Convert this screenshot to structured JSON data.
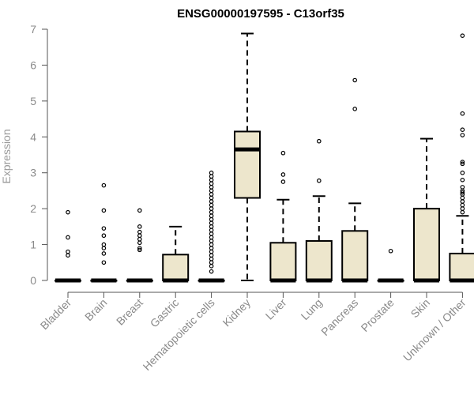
{
  "chart_data": {
    "type": "box",
    "title": "ENSG00000197595 - C13orf35",
    "xlabel": "",
    "ylabel": "Expression",
    "ylim": [
      0,
      7
    ],
    "yticks": [
      0,
      1,
      2,
      3,
      4,
      5,
      6,
      7
    ],
    "box_fill": "#ede6cc",
    "box_stroke": "#000000",
    "categories": [
      "Bladder",
      "Brain",
      "Breast",
      "Gastric",
      "Hematopoietic cells",
      "Kidney",
      "Liver",
      "Lung",
      "Pancreas",
      "Prostate",
      "Skin",
      "Unknown / Other"
    ],
    "boxes": [
      {
        "min": 0,
        "q1": 0,
        "median": 0,
        "q3": 0,
        "max": 0,
        "outliers": [
          1.9,
          1.2,
          0.8,
          0.7
        ]
      },
      {
        "min": 0,
        "q1": 0,
        "median": 0,
        "q3": 0,
        "max": 0,
        "outliers": [
          2.65,
          1.95,
          1.45,
          1.25,
          1.0,
          0.9,
          0.75,
          0.5
        ]
      },
      {
        "min": 0,
        "q1": 0,
        "median": 0,
        "q3": 0,
        "max": 0,
        "outliers": [
          1.95,
          1.5,
          1.35,
          1.25,
          1.15,
          1.05,
          0.9,
          0.85
        ]
      },
      {
        "min": 0,
        "q1": 0,
        "median": 0,
        "q3": 0.72,
        "max": 1.5,
        "outliers": []
      },
      {
        "min": 0,
        "q1": 0,
        "median": 0,
        "q3": 0,
        "max": 0,
        "outliers": [
          3.0,
          2.9,
          2.8,
          2.7,
          2.6,
          2.5,
          2.4,
          2.3,
          2.2,
          2.1,
          2.0,
          1.9,
          1.8,
          1.7,
          1.6,
          1.5,
          1.4,
          1.3,
          1.2,
          1.1,
          1.0,
          0.9,
          0.8,
          0.7,
          0.6,
          0.5,
          0.4,
          0.25
        ]
      },
      {
        "min": 0,
        "q1": 2.3,
        "median": 3.65,
        "q3": 4.15,
        "max": 6.88,
        "outliers": []
      },
      {
        "min": 0,
        "q1": 0,
        "median": 0,
        "q3": 1.05,
        "max": 2.25,
        "outliers": [
          3.55,
          2.95,
          2.75
        ]
      },
      {
        "min": 0,
        "q1": 0,
        "median": 0,
        "q3": 1.1,
        "max": 2.35,
        "outliers": [
          3.88,
          2.78
        ]
      },
      {
        "min": 0,
        "q1": 0,
        "median": 0,
        "q3": 1.38,
        "max": 2.15,
        "outliers": [
          5.58,
          4.78
        ]
      },
      {
        "min": 0,
        "q1": 0,
        "median": 0,
        "q3": 0,
        "max": 0,
        "outliers": [
          0.82
        ]
      },
      {
        "min": 0,
        "q1": 0,
        "median": 0,
        "q3": 2.0,
        "max": 3.95,
        "outliers": []
      },
      {
        "min": 0,
        "q1": 0,
        "median": 0,
        "q3": 0.75,
        "max": 1.8,
        "outliers": [
          6.82,
          4.65,
          4.2,
          4.05,
          3.3,
          3.25,
          3.0,
          2.8,
          2.6,
          2.5,
          2.45,
          2.4,
          2.3,
          2.2,
          2.1,
          2.0,
          1.9
        ]
      }
    ]
  }
}
